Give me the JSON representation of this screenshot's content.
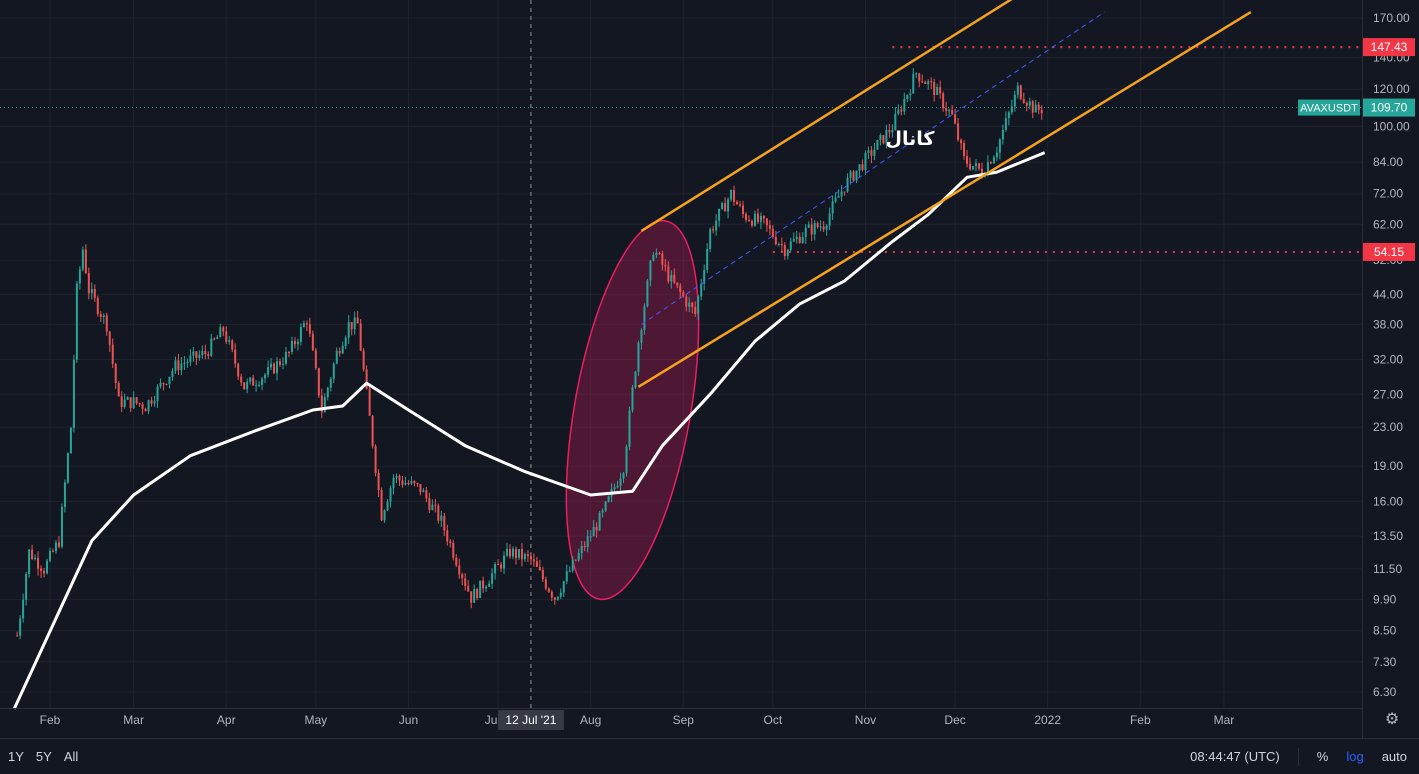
{
  "symbol": "AVAXUSDT",
  "last_price": "109.70",
  "colors": {
    "background": "#131722",
    "up": "#26a69a",
    "down": "#ef5350",
    "ma": "#ffffff",
    "channel": "#f7a21c",
    "midline": "#3d5afe",
    "level": "#f23645",
    "ellipse": "#e91e63",
    "last_price_line": "#26a69a"
  },
  "chart_data": {
    "type": "candlestick",
    "scale": "log",
    "annotation": "کانال",
    "x_ticks": [
      "Feb",
      "Mar",
      "Apr",
      "May",
      "Jun",
      "Ju",
      "Aug",
      "Sep",
      "Oct",
      "Nov",
      "Dec",
      "2022",
      "Feb",
      "Mar"
    ],
    "y_ticks": [
      "170.00",
      "140.00",
      "120.00",
      "100.00",
      "84.00",
      "72.00",
      "62.00",
      "52.00",
      "44.00",
      "38.00",
      "32.00",
      "27.00",
      "23.00",
      "19.00",
      "16.00",
      "13.50",
      "11.50",
      "9.90",
      "8.50",
      "7.30",
      "6.30"
    ],
    "ylim": [
      5.8,
      190
    ],
    "crosshair_label": "12 Jul '21",
    "price_levels": [
      {
        "value": 147.43,
        "label": "147.43"
      },
      {
        "value": 54.15,
        "label": "54.15"
      }
    ],
    "close_anchors": [
      [
        "2021-01-21",
        8.3
      ],
      [
        "2021-01-25",
        12.5
      ],
      [
        "2021-01-30",
        11.5
      ],
      [
        "2021-02-04",
        13.2
      ],
      [
        "2021-02-08",
        23.0
      ],
      [
        "2021-02-10",
        45.0
      ],
      [
        "2021-02-12",
        55.0
      ],
      [
        "2021-02-14",
        45.0
      ],
      [
        "2021-02-20",
        38.0
      ],
      [
        "2021-02-24",
        26.0
      ],
      [
        "2021-03-01",
        26.0
      ],
      [
        "2021-03-05",
        25.5
      ],
      [
        "2021-03-15",
        31.0
      ],
      [
        "2021-03-25",
        33.0
      ],
      [
        "2021-03-31",
        37.0
      ],
      [
        "2021-04-07",
        28.0
      ],
      [
        "2021-04-15",
        30.0
      ],
      [
        "2021-04-22",
        33.0
      ],
      [
        "2021-04-28",
        39.0
      ],
      [
        "2021-05-03",
        25.0
      ],
      [
        "2021-05-08",
        33.0
      ],
      [
        "2021-05-12",
        38.0
      ],
      [
        "2021-05-15",
        38.0
      ],
      [
        "2021-05-19",
        24.0
      ],
      [
        "2021-05-23",
        15.0
      ],
      [
        "2021-05-27",
        18.0
      ],
      [
        "2021-06-05",
        17.0
      ],
      [
        "2021-06-12",
        14.5
      ],
      [
        "2021-06-22",
        10.0
      ],
      [
        "2021-06-28",
        11.0
      ],
      [
        "2021-07-05",
        12.5
      ],
      [
        "2021-07-12",
        12.0
      ],
      [
        "2021-07-20",
        10.0
      ],
      [
        "2021-07-27",
        12.0
      ],
      [
        "2021-08-05",
        15.0
      ],
      [
        "2021-08-12",
        19.0
      ],
      [
        "2021-08-17",
        35.0
      ],
      [
        "2021-08-22",
        55.0
      ],
      [
        "2021-08-28",
        47.0
      ],
      [
        "2021-09-05",
        40.0
      ],
      [
        "2021-09-10",
        60.0
      ],
      [
        "2021-09-17",
        72.0
      ],
      [
        "2021-09-21",
        65.0
      ],
      [
        "2021-09-28",
        62.0
      ],
      [
        "2021-10-05",
        55.0
      ],
      [
        "2021-10-12",
        60.0
      ],
      [
        "2021-10-18",
        62.0
      ],
      [
        "2021-10-25",
        75.0
      ],
      [
        "2021-11-01",
        85.0
      ],
      [
        "2021-11-10",
        100.0
      ],
      [
        "2021-11-18",
        130.0
      ],
      [
        "2021-11-24",
        120.0
      ],
      [
        "2021-11-30",
        105.0
      ],
      [
        "2021-12-04",
        85.0
      ],
      [
        "2021-12-10",
        80.0
      ],
      [
        "2021-12-15",
        90.0
      ],
      [
        "2021-12-22",
        120.0
      ],
      [
        "2021-12-28",
        108.0
      ],
      [
        "2021-12-31",
        109.7
      ]
    ],
    "moving_average": [
      [
        "2021-01-20",
        5.8
      ],
      [
        "2021-02-15",
        13.2
      ],
      [
        "2021-03-01",
        16.5
      ],
      [
        "2021-03-20",
        20.0
      ],
      [
        "2021-04-10",
        22.5
      ],
      [
        "2021-04-30",
        25.0
      ],
      [
        "2021-05-10",
        25.5
      ],
      [
        "2021-05-18",
        28.5
      ],
      [
        "2021-06-01",
        25.0
      ],
      [
        "2021-06-20",
        21.0
      ],
      [
        "2021-07-10",
        18.5
      ],
      [
        "2021-08-01",
        16.5
      ],
      [
        "2021-08-15",
        16.8
      ],
      [
        "2021-08-25",
        21.0
      ],
      [
        "2021-09-10",
        27.0
      ],
      [
        "2021-09-25",
        35.0
      ],
      [
        "2021-10-10",
        42.0
      ],
      [
        "2021-10-25",
        47.0
      ],
      [
        "2021-11-10",
        57.0
      ],
      [
        "2021-11-22",
        65.0
      ],
      [
        "2021-12-05",
        78.0
      ],
      [
        "2021-12-15",
        80.0
      ],
      [
        "2021-12-31",
        88.0
      ]
    ],
    "channel": {
      "upper": [
        [
          "2021-08-18",
          60.0
        ],
        [
          "2021-12-22",
          190.0
        ]
      ],
      "lower": [
        [
          "2021-08-17",
          28.0
        ],
        [
          "2022-03-10",
          175.0
        ]
      ],
      "mid": [
        [
          "2021-08-18",
          38.0
        ],
        [
          "2022-01-20",
          175.0
        ]
      ]
    }
  },
  "bottom_bar": {
    "ranges": [
      "1Y",
      "5Y",
      "All"
    ],
    "time": "08:44:47 (UTC)",
    "percent": "%",
    "log": "log",
    "auto": "auto"
  }
}
